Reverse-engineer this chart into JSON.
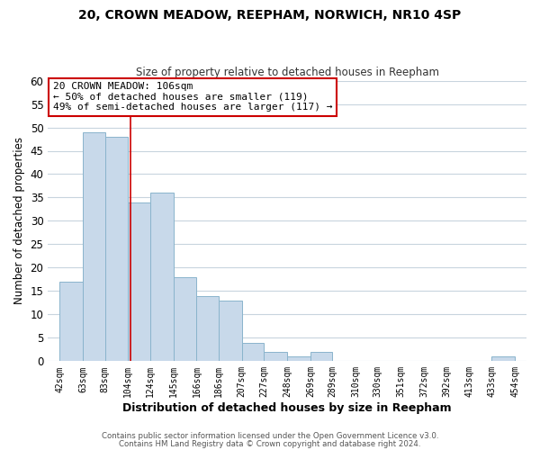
{
  "title_line1": "20, CROWN MEADOW, REEPHAM, NORWICH, NR10 4SP",
  "title_line2": "Size of property relative to detached houses in Reepham",
  "xlabel": "Distribution of detached houses by size in Reepham",
  "ylabel": "Number of detached properties",
  "bar_edges": [
    42,
    63,
    83,
    104,
    124,
    145,
    166,
    186,
    207,
    227,
    248,
    269,
    289,
    310,
    330,
    351,
    372,
    392,
    413,
    433,
    454
  ],
  "bar_heights": [
    17,
    49,
    48,
    34,
    36,
    18,
    14,
    13,
    4,
    2,
    1,
    2,
    0,
    0,
    0,
    0,
    0,
    0,
    0,
    1
  ],
  "bar_color": "#c8d9ea",
  "bar_edgecolor": "#8ab4cc",
  "ylim": [
    0,
    60
  ],
  "yticks": [
    0,
    5,
    10,
    15,
    20,
    25,
    30,
    35,
    40,
    45,
    50,
    55,
    60
  ],
  "annotation_text": "20 CROWN MEADOW: 106sqm\n← 50% of detached houses are smaller (119)\n49% of semi-detached houses are larger (117) →",
  "annotation_box_color": "#ffffff",
  "annotation_box_edgecolor": "#cc0000",
  "property_line_x": 106,
  "property_line_color": "#cc0000",
  "footer_line1": "Contains HM Land Registry data © Crown copyright and database right 2024.",
  "footer_line2": "Contains public sector information licensed under the Open Government Licence v3.0.",
  "tick_labels": [
    "42sqm",
    "63sqm",
    "83sqm",
    "104sqm",
    "124sqm",
    "145sqm",
    "166sqm",
    "186sqm",
    "207sqm",
    "227sqm",
    "248sqm",
    "269sqm",
    "289sqm",
    "310sqm",
    "330sqm",
    "351sqm",
    "372sqm",
    "392sqm",
    "413sqm",
    "433sqm",
    "454sqm"
  ],
  "background_color": "#ffffff",
  "grid_color": "#c8d4de"
}
